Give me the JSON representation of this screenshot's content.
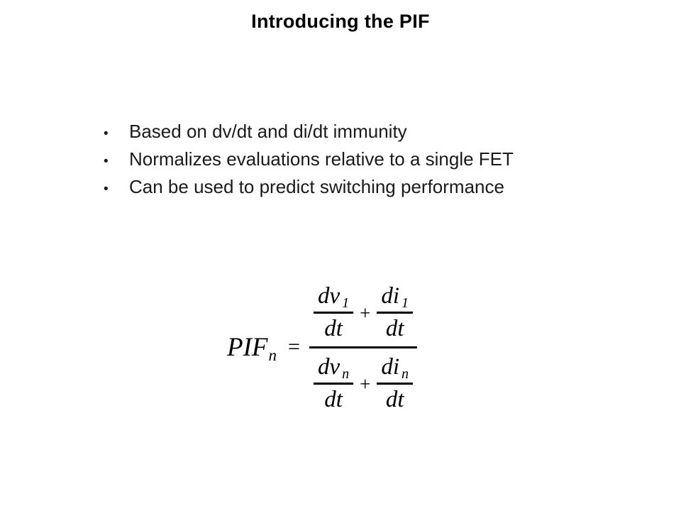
{
  "slide": {
    "title": "Introducing the PIF",
    "bullet_char": "•",
    "bullets": [
      "Based on dv/dt and di/dt immunity",
      "Normalizes evaluations relative to a single FET",
      "Can be used to predict switching performance"
    ],
    "formula": {
      "lhs_base": "PIF",
      "lhs_sub": "n",
      "equals_sign": "=",
      "plus_sign": "+",
      "numerator": {
        "left": {
          "top_base": "dv",
          "top_sub": "1",
          "bottom": "dt"
        },
        "right": {
          "top_base": "di",
          "top_sub": "1",
          "bottom": "dt"
        }
      },
      "denominator": {
        "left": {
          "top_base": "dv",
          "top_sub": "n",
          "bottom": "dt"
        },
        "right": {
          "top_base": "di",
          "top_sub": "n",
          "bottom": "dt"
        }
      }
    },
    "colors": {
      "background": "#ffffff",
      "text": "#000000"
    }
  }
}
